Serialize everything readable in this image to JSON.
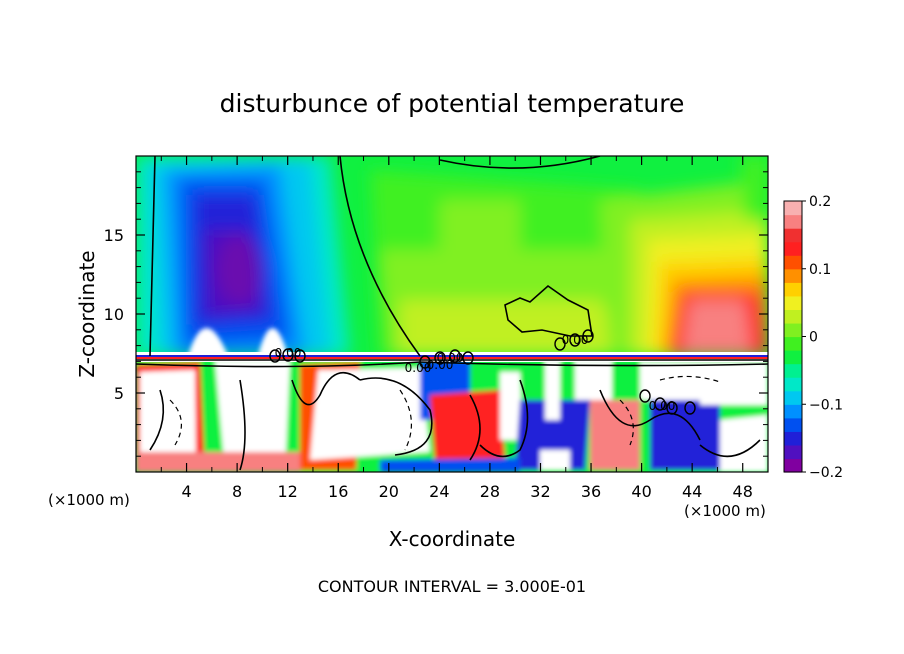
{
  "chart_data": {
    "type": "heatmap",
    "title": "disturbunce of potential temperature",
    "xlabel": "X-coordinate",
    "ylabel": "Z-coordinate",
    "x_unit_note_left": "(×1000 m)",
    "x_unit_note_right": "(×1000 m)",
    "xlim": [
      0,
      50
    ],
    "ylim": [
      0,
      20
    ],
    "x_ticks": [
      4,
      8,
      12,
      16,
      20,
      24,
      28,
      32,
      36,
      40,
      44,
      48
    ],
    "y_ticks": [
      5,
      10,
      15
    ],
    "colorbar": {
      "min": -0.2,
      "max": 0.2,
      "tick_values": [
        0.2,
        0.1,
        0,
        -0.1,
        -0.2
      ],
      "tick_labels": [
        "0.2",
        "0.1",
        "0",
        "−0.1",
        "−0.2"
      ],
      "colors": [
        "#8000a0",
        "#5010c0",
        "#2020d8",
        "#0050f0",
        "#0090ff",
        "#00c8f0",
        "#00e8c8",
        "#00f090",
        "#10f040",
        "#40f020",
        "#80f020",
        "#c0f020",
        "#f0f020",
        "#ffd000",
        "#ff9000",
        "#ff5000",
        "#ff2020",
        "#f03030",
        "#f88080",
        "#f8b0b0"
      ]
    },
    "contour_interval_text": "CONTOUR INTERVAL = 3.000E-01",
    "contour_labels": [
      "0.00",
      "0.00",
      "0.00",
      "0.00",
      "0.00",
      "0.00"
    ],
    "field_features": [
      {
        "kind": "negative_anomaly",
        "x_center": 8,
        "z_center": 13,
        "value": -0.2
      },
      {
        "kind": "positive_anomaly",
        "x_center": 46,
        "z_center": 10,
        "value": 0.2
      },
      {
        "kind": "near_zero_region",
        "x_center": 27,
        "z_center": 15,
        "value": 0
      },
      {
        "kind": "turbulent_layer",
        "z_top": 7.3,
        "value": "mixed"
      }
    ]
  }
}
